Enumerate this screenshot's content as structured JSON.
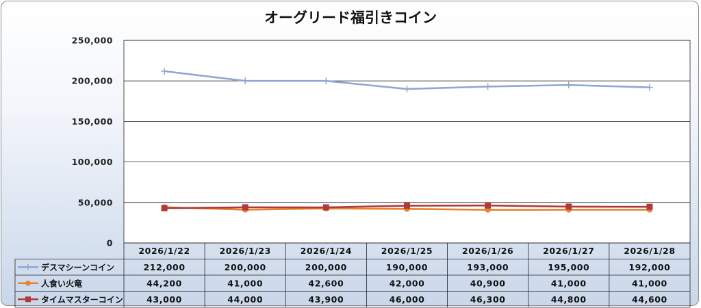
{
  "chart_data": {
    "type": "line",
    "title": "オーグリード福引きコイン",
    "categories": [
      "2026/1/22",
      "2026/1/23",
      "2026/1/24",
      "2026/1/25",
      "2026/1/26",
      "2026/1/27",
      "2026/1/28"
    ],
    "ylim": [
      0,
      250000
    ],
    "yticks": [
      "0",
      "50,000",
      "100,000",
      "150,000",
      "200,000",
      "250,000"
    ],
    "grid": true,
    "legend": "data-table",
    "series": [
      {
        "name": "デスマシーンコイン",
        "color": "#8fa7d4",
        "marker": "plus",
        "values": [
          212000,
          200000,
          200000,
          190000,
          193000,
          195000,
          192000
        ],
        "labels": [
          "212,000",
          "200,000",
          "200,000",
          "190,000",
          "193,000",
          "195,000",
          "192,000"
        ]
      },
      {
        "name": "人食い火竜",
        "color": "#e8822e",
        "marker": "circle",
        "values": [
          44200,
          41000,
          42600,
          42000,
          40900,
          41000,
          41000
        ],
        "labels": [
          "44,200",
          "41,000",
          "42,600",
          "42,000",
          "40,900",
          "41,000",
          "41,000"
        ]
      },
      {
        "name": "タイムマスターコイン",
        "color": "#b03a3a",
        "marker": "square",
        "values": [
          43000,
          44000,
          43900,
          46000,
          46300,
          44800,
          44600
        ],
        "labels": [
          "43,000",
          "44,000",
          "43,900",
          "46,000",
          "46,300",
          "44,800",
          "44,600"
        ]
      }
    ]
  }
}
